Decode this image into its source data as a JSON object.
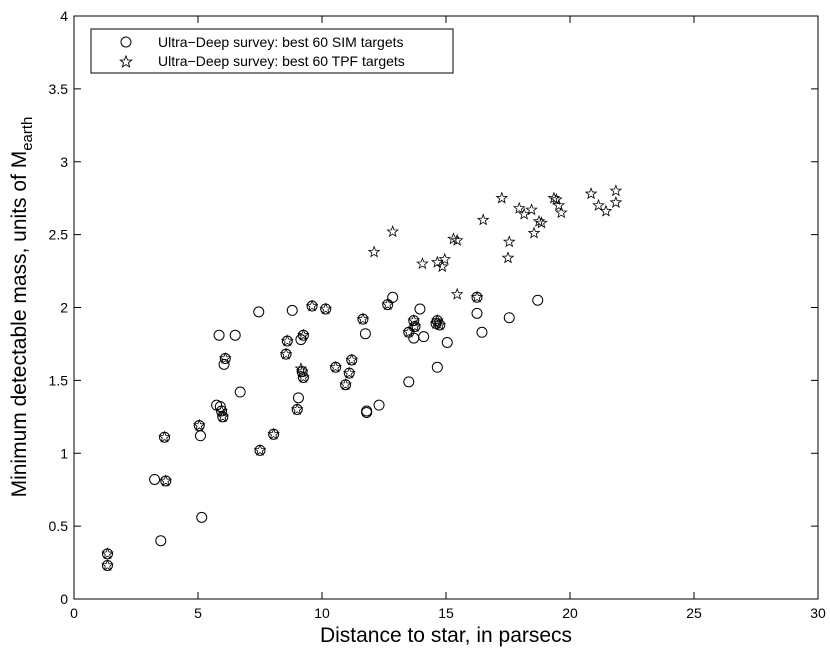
{
  "chart_data": {
    "type": "scatter",
    "title": "",
    "xlabel": "Distance to star, in parsecs",
    "ylabel_main": "Minimum detectable mass, units of M",
    "ylabel_sub": "earth",
    "xlim": [
      0,
      30
    ],
    "ylim": [
      0,
      4
    ],
    "xticks": [
      0,
      5,
      10,
      15,
      20,
      25,
      30
    ],
    "yticks": [
      0,
      0.5,
      1,
      1.5,
      2,
      2.5,
      3,
      3.5,
      4
    ],
    "xtick_labels": [
      "0",
      "5",
      "10",
      "15",
      "20",
      "25",
      "30"
    ],
    "ytick_labels": [
      "0",
      "0.5",
      "1",
      "1.5",
      "2",
      "2.5",
      "3",
      "3.5",
      "4"
    ],
    "grid": false,
    "legend_position": "top-left",
    "series": [
      {
        "name": "Ultra−Deep survey: best 60 SIM targets",
        "marker": "circle",
        "points": [
          [
            1.35,
            0.31
          ],
          [
            1.35,
            0.23
          ],
          [
            3.25,
            0.82
          ],
          [
            3.5,
            0.4
          ],
          [
            3.65,
            1.11
          ],
          [
            3.7,
            0.81
          ],
          [
            5.05,
            1.19
          ],
          [
            5.1,
            1.12
          ],
          [
            5.15,
            0.56
          ],
          [
            5.75,
            1.33
          ],
          [
            5.85,
            1.81
          ],
          [
            5.9,
            1.32
          ],
          [
            5.95,
            1.29
          ],
          [
            6.0,
            1.25
          ],
          [
            6.05,
            1.61
          ],
          [
            6.1,
            1.65
          ],
          [
            6.5,
            1.81
          ],
          [
            6.7,
            1.42
          ],
          [
            7.45,
            1.97
          ],
          [
            7.5,
            1.02
          ],
          [
            8.05,
            1.13
          ],
          [
            8.55,
            1.68
          ],
          [
            8.6,
            1.77
          ],
          [
            8.8,
            1.98
          ],
          [
            9.0,
            1.3
          ],
          [
            9.05,
            1.38
          ],
          [
            9.15,
            1.78
          ],
          [
            9.2,
            1.56
          ],
          [
            9.25,
            1.81
          ],
          [
            9.25,
            1.52
          ],
          [
            9.6,
            2.01
          ],
          [
            10.15,
            1.99
          ],
          [
            10.55,
            1.59
          ],
          [
            10.95,
            1.47
          ],
          [
            11.1,
            1.55
          ],
          [
            11.2,
            1.64
          ],
          [
            11.65,
            1.92
          ],
          [
            11.75,
            1.82
          ],
          [
            11.8,
            1.28
          ],
          [
            11.8,
            1.29
          ],
          [
            12.3,
            1.33
          ],
          [
            12.65,
            2.02
          ],
          [
            12.85,
            2.07
          ],
          [
            13.5,
            1.83
          ],
          [
            13.5,
            1.49
          ],
          [
            13.7,
            1.91
          ],
          [
            13.7,
            1.79
          ],
          [
            13.75,
            1.87
          ],
          [
            13.95,
            1.99
          ],
          [
            14.1,
            1.8
          ],
          [
            14.6,
            1.89
          ],
          [
            14.65,
            1.59
          ],
          [
            14.65,
            1.91
          ],
          [
            14.75,
            1.88
          ],
          [
            15.05,
            1.76
          ],
          [
            16.25,
            1.96
          ],
          [
            16.25,
            2.07
          ],
          [
            16.45,
            1.83
          ],
          [
            17.55,
            1.93
          ],
          [
            18.7,
            2.05
          ]
        ]
      },
      {
        "name": "Ultra−Deep survey: best 60 TPF targets",
        "marker": "star",
        "points": [
          [
            1.35,
            0.31
          ],
          [
            1.35,
            0.23
          ],
          [
            3.65,
            1.11
          ],
          [
            3.7,
            0.81
          ],
          [
            5.05,
            1.19
          ],
          [
            5.95,
            1.29
          ],
          [
            6.0,
            1.25
          ],
          [
            6.1,
            1.65
          ],
          [
            7.5,
            1.02
          ],
          [
            8.05,
            1.13
          ],
          [
            8.55,
            1.68
          ],
          [
            8.6,
            1.77
          ],
          [
            9.0,
            1.3
          ],
          [
            9.2,
            1.56
          ],
          [
            9.25,
            1.52
          ],
          [
            9.25,
            1.81
          ],
          [
            9.15,
            1.58
          ],
          [
            9.6,
            2.01
          ],
          [
            10.15,
            1.99
          ],
          [
            10.55,
            1.59
          ],
          [
            10.95,
            1.47
          ],
          [
            11.1,
            1.55
          ],
          [
            11.2,
            1.64
          ],
          [
            11.65,
            1.92
          ],
          [
            12.1,
            2.38
          ],
          [
            12.65,
            2.02
          ],
          [
            12.85,
            2.52
          ],
          [
            13.5,
            1.83
          ],
          [
            13.7,
            1.91
          ],
          [
            13.75,
            1.87
          ],
          [
            14.05,
            2.3
          ],
          [
            14.6,
            1.89
          ],
          [
            14.65,
            1.91
          ],
          [
            14.65,
            2.31
          ],
          [
            14.75,
            1.88
          ],
          [
            14.85,
            2.28
          ],
          [
            14.95,
            2.33
          ],
          [
            15.3,
            2.47
          ],
          [
            15.45,
            2.46
          ],
          [
            15.45,
            2.09
          ],
          [
            16.25,
            2.07
          ],
          [
            16.5,
            2.6
          ],
          [
            17.25,
            2.75
          ],
          [
            17.5,
            2.34
          ],
          [
            17.55,
            2.45
          ],
          [
            17.95,
            2.68
          ],
          [
            18.15,
            2.64
          ],
          [
            18.45,
            2.67
          ],
          [
            18.55,
            2.51
          ],
          [
            18.75,
            2.59
          ],
          [
            18.85,
            2.58
          ],
          [
            19.35,
            2.75
          ],
          [
            19.55,
            2.7
          ],
          [
            19.65,
            2.65
          ],
          [
            20.85,
            2.78
          ],
          [
            21.15,
            2.7
          ],
          [
            21.45,
            2.66
          ],
          [
            21.85,
            2.8
          ],
          [
            21.85,
            2.72
          ],
          [
            19.45,
            2.74
          ]
        ]
      }
    ]
  }
}
